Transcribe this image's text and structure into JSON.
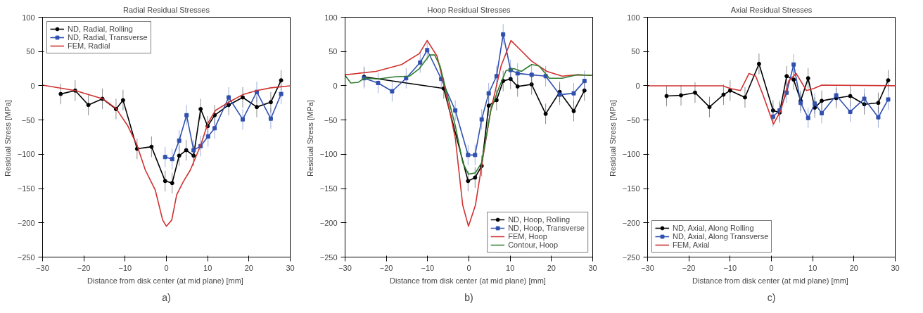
{
  "chart_data": [
    {
      "type": "line",
      "title": "Radial Residual Stresses",
      "xlabel": "Distance from disk center (at mid plane)  [mm]",
      "ylabel": "Residual Stress  [MPa]",
      "annotations": [
        "a)"
      ],
      "xlim": [
        -30,
        30
      ],
      "ylim": [
        -250,
        100
      ],
      "xticks": [
        -30,
        -20,
        -10,
        0,
        10,
        20,
        30
      ],
      "yticks": [
        -250,
        -200,
        -150,
        -100,
        -50,
        0,
        50,
        100
      ],
      "legend": "top left",
      "line_style": "solid",
      "series": [
        {
          "name": "ND, Radial, Rolling",
          "color": "#000000",
          "marker": "circle",
          "x": [
            -25.6,
            -22.1,
            -18.9,
            -15.5,
            -12.2,
            -10.5,
            -7.1,
            -3.6,
            -0.3,
            1.4,
            3.1,
            4.8,
            6.6,
            8.3,
            10.0,
            11.7,
            15.1,
            18.5,
            21.9,
            25.3,
            27.8
          ],
          "values": [
            -12,
            -7,
            -28,
            -19,
            -34,
            -21,
            -92,
            -89,
            -139,
            -142,
            -102,
            -94,
            -102,
            -34,
            -59,
            -43,
            -28,
            -17,
            -31,
            -24,
            8
          ],
          "errors": [
            15,
            15,
            15,
            15,
            15,
            15,
            15,
            15,
            15,
            15,
            15,
            15,
            15,
            15,
            15,
            15,
            15,
            15,
            15,
            15,
            15
          ]
        },
        {
          "name": "ND, Radial, Transverse",
          "color": "#3050b0",
          "marker": "square",
          "x": [
            -0.3,
            1.4,
            3.1,
            4.9,
            6.6,
            8.3,
            10.1,
            11.7,
            15.1,
            18.5,
            21.9,
            25.3,
            27.8
          ],
          "values": [
            -104,
            -107,
            -80,
            -43,
            -94,
            -88,
            -74,
            -62,
            -17,
            -49,
            -9,
            -48,
            -12
          ],
          "errors": [
            15,
            15,
            15,
            15,
            15,
            15,
            15,
            15,
            15,
            15,
            15,
            15,
            15
          ]
        },
        {
          "name": "FEM, Radial",
          "color": "#d03030",
          "marker": "none",
          "x": [
            -30,
            -22.1,
            -15.4,
            -12.2,
            -9.4,
            -7.1,
            -5.1,
            -2.7,
            -0.9,
            0,
            1.3,
            2.5,
            4.0,
            5.8,
            8.3,
            10.1,
            11.9,
            15.1,
            18.5,
            21.9,
            25.3,
            30
          ],
          "values": [
            1,
            -7,
            -19,
            -33,
            -58,
            -87,
            -123,
            -152,
            -196,
            -205,
            -196,
            -159,
            -141,
            -123,
            -87,
            -54,
            -36,
            -24,
            -13,
            -7,
            -3,
            0
          ]
        }
      ]
    },
    {
      "type": "line",
      "title": "Hoop Residual Stresses",
      "xlabel": "Distance from disk center (at mid plane)  [mm]",
      "ylabel": "Residual Stress  [MPa]",
      "annotations": [
        "b)"
      ],
      "xlim": [
        -30,
        30
      ],
      "ylim": [
        -250,
        100
      ],
      "xticks": [
        -30,
        -20,
        -10,
        0,
        10,
        20,
        30
      ],
      "yticks": [
        -250,
        -200,
        -150,
        -100,
        -50,
        0,
        50,
        100
      ],
      "legend": "bottom right",
      "line_style": "solid",
      "series": [
        {
          "name": "ND, Hoop, Rolling",
          "color": "#000000",
          "marker": "circle",
          "x": [
            -25.4,
            -6.1,
            -0.2,
            1.5,
            3.1,
            4.8,
            6.7,
            8.3,
            10.1,
            11.8,
            15.2,
            18.6,
            22.0,
            25.4,
            28.0
          ],
          "values": [
            13,
            -4,
            -139,
            -134,
            -117,
            -29,
            -21,
            7,
            10,
            -1,
            2,
            -41,
            -9,
            -37,
            -7
          ],
          "errors": [
            15,
            15,
            15,
            15,
            15,
            15,
            15,
            15,
            15,
            15,
            15,
            15,
            15,
            15,
            15
          ]
        },
        {
          "name": "ND, Hoop, Transverse",
          "color": "#3050b0",
          "marker": "square",
          "x": [
            -25.4,
            -22.0,
            -18.6,
            -15.2,
            -11.8,
            -10.1,
            -6.7,
            -3.3,
            -0.2,
            1.5,
            3.1,
            4.8,
            6.7,
            8.3,
            10.1,
            11.8,
            15.2,
            18.6,
            22.0,
            25.4,
            28.0
          ],
          "values": [
            11,
            4,
            -8,
            11,
            34,
            52,
            10,
            -36,
            -101,
            -101,
            -49,
            -11,
            14,
            75,
            23,
            18,
            16,
            14,
            -13,
            -11,
            7
          ],
          "errors": [
            15,
            15,
            15,
            15,
            15,
            15,
            15,
            15,
            15,
            15,
            15,
            15,
            15,
            15,
            15,
            15,
            15,
            15,
            15,
            15,
            15
          ]
        },
        {
          "name": "FEM, Hoop",
          "color": "#d03030",
          "marker": "none",
          "x": [
            -30,
            -22.5,
            -16.3,
            -12,
            -10.1,
            -7.7,
            -5.8,
            -3.3,
            -1.5,
            -0.1,
            1.6,
            3.5,
            5.3,
            7.8,
            10.2,
            12.7,
            15.2,
            18.9,
            22.6,
            26.3,
            30
          ],
          "values": [
            16,
            21,
            31,
            47,
            66,
            43,
            -4,
            -76,
            -174,
            -205,
            -174,
            -101,
            -36,
            29,
            66,
            51,
            36,
            21,
            14,
            16,
            15
          ]
        },
        {
          "name": "Contour, Hoop",
          "color": "#2e7d2e",
          "marker": "none",
          "x": [
            -30,
            -28.6,
            -26.8,
            -25.4,
            -21.9,
            -18.1,
            -14.4,
            -12,
            -9.5,
            -8.3,
            -7,
            -5.8,
            -3.3,
            -1.5,
            -0.1,
            1.6,
            3.1,
            5.3,
            7.2,
            9,
            10.9,
            12.7,
            15.2,
            17,
            19.5,
            22.6,
            26.3,
            30
          ],
          "values": [
            15,
            4,
            5,
            11,
            10,
            13,
            14,
            25,
            45,
            45,
            29,
            0,
            -58,
            -112,
            -129,
            -127,
            -112,
            -36,
            -4,
            22,
            25,
            21,
            31,
            29,
            11,
            11,
            16,
            15
          ]
        }
      ]
    },
    {
      "type": "line",
      "title": "Axial Residual Stresses",
      "xlabel": "Distance from disk center (at mid plane)  [mm]",
      "ylabel": "Residual Stress  [MPa]",
      "annotations": [
        "c)"
      ],
      "xlim": [
        -30,
        30
      ],
      "ylim": [
        -250,
        100
      ],
      "xticks": [
        -30,
        -20,
        -10,
        0,
        10,
        20,
        30
      ],
      "yticks": [
        -250,
        -200,
        -150,
        -100,
        -50,
        0,
        50,
        100
      ],
      "legend": "bottom left",
      "line_style": "solid",
      "series": [
        {
          "name": "ND, Axial, Along Rolling",
          "color": "#000000",
          "marker": "circle",
          "x": [
            -25.4,
            -21.9,
            -18.5,
            -15,
            -11.6,
            -10,
            -6.4,
            -3,
            0.4,
            2,
            3.7,
            5.4,
            7.1,
            8.9,
            10.5,
            12.2,
            15.7,
            19.1,
            22.5,
            25.9,
            28.3
          ],
          "values": [
            -15,
            -14,
            -10,
            -31,
            -13,
            -7,
            -17,
            32,
            -36,
            -39,
            14,
            9,
            -22,
            11,
            -32,
            -22,
            -18,
            -15,
            -27,
            -25,
            8
          ],
          "errors": [
            15,
            15,
            15,
            15,
            15,
            15,
            15,
            15,
            15,
            15,
            15,
            15,
            15,
            15,
            15,
            15,
            15,
            15,
            15,
            15,
            15
          ]
        },
        {
          "name": "ND, Axial, Along Transverse",
          "color": "#3050b0",
          "marker": "square",
          "x": [
            0.4,
            2,
            3.7,
            5.4,
            7.1,
            8.9,
            10.5,
            12.2,
            15.7,
            19.1,
            22.5,
            25.9,
            28.3
          ],
          "values": [
            -45,
            -36,
            -10,
            31,
            -25,
            -47,
            -26,
            -40,
            -14,
            -38,
            -19,
            -46,
            -20
          ],
          "errors": [
            15,
            15,
            15,
            15,
            15,
            15,
            15,
            15,
            15,
            15,
            15,
            15,
            15
          ]
        },
        {
          "name": "FEM, Axial",
          "color": "#d03030",
          "marker": "none",
          "x": [
            -30,
            -11.8,
            -10,
            -7.5,
            -5.4,
            -3.8,
            -2,
            0.5,
            2.3,
            4.2,
            6,
            8.5,
            10.3,
            12.2,
            30
          ],
          "values": [
            0,
            0,
            -4,
            -7,
            18,
            14,
            -14,
            -56,
            -36,
            7,
            18,
            -7,
            -4,
            1,
            0
          ]
        }
      ]
    }
  ]
}
